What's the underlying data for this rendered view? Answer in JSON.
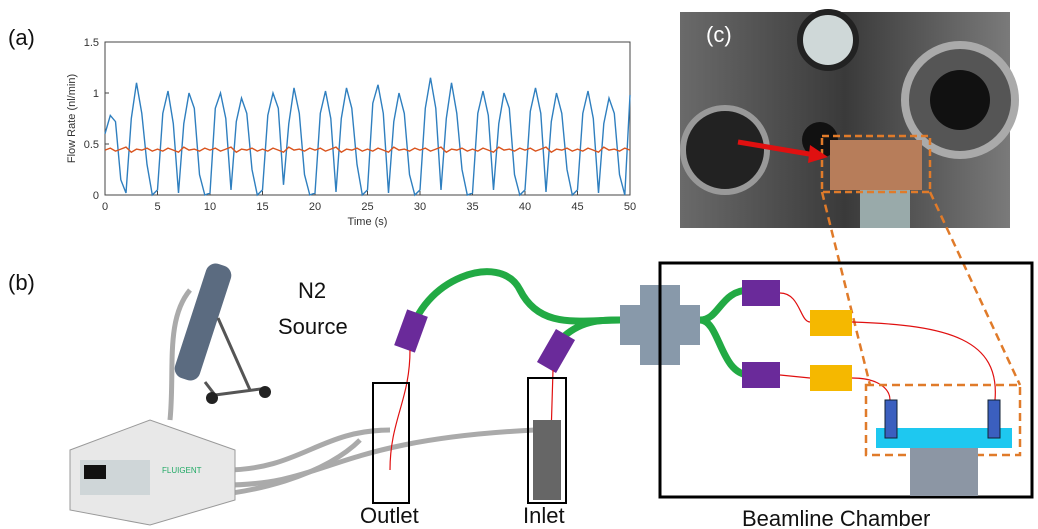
{
  "panels": [
    "(a)",
    "(b)",
    "(c)"
  ],
  "chart_data": {
    "type": "line",
    "ylabel": "Flow Rate (nl/min)",
    "xlabel": "Time (s)",
    "x": [
      0,
      0.5,
      1,
      1.5,
      2,
      2.5,
      3,
      3.5,
      4,
      4.5,
      5,
      5.5,
      6,
      6.5,
      7,
      7.5,
      8,
      8.5,
      9,
      9.5,
      10,
      10.5,
      11,
      11.5,
      12,
      12.5,
      13,
      13.5,
      14,
      14.5,
      15,
      15.5,
      16,
      16.5,
      17,
      17.5,
      18,
      18.5,
      19,
      19.5,
      20,
      20.5,
      21,
      21.5,
      22,
      22.5,
      23,
      23.5,
      24,
      24.5,
      25,
      25.5,
      26,
      26.5,
      27,
      27.5,
      28,
      28.5,
      29,
      29.5,
      30,
      30.5,
      31,
      31.5,
      32,
      32.5,
      33,
      33.5,
      34,
      34.5,
      35,
      35.5,
      36,
      36.5,
      37,
      37.5,
      38,
      38.5,
      39,
      39.5,
      40,
      40.5,
      41,
      41.5,
      42,
      42.5,
      43,
      43.5,
      44,
      44.5,
      45,
      45.5,
      46,
      46.5,
      47,
      47.5,
      48,
      48.5,
      49,
      49.5,
      50
    ],
    "series": [
      {
        "color": "#2f7fbf",
        "values": [
          0.6,
          0.78,
          0.72,
          0.15,
          0.02,
          0.75,
          1.1,
          0.8,
          0.3,
          0.0,
          0.05,
          0.8,
          1.02,
          0.7,
          0.02,
          0.7,
          1.0,
          0.85,
          0.2,
          0.0,
          0.02,
          0.85,
          1.0,
          0.75,
          0.05,
          0.72,
          0.95,
          0.8,
          0.25,
          0.0,
          0.05,
          0.78,
          1.0,
          0.85,
          0.1,
          0.7,
          1.05,
          0.8,
          0.2,
          0.0,
          0.02,
          0.8,
          1.02,
          0.75,
          0.03,
          0.75,
          1.05,
          0.85,
          0.3,
          0.0,
          0.05,
          0.9,
          1.08,
          0.8,
          0.02,
          0.72,
          1.0,
          0.8,
          0.2,
          0.0,
          0.05,
          0.85,
          1.15,
          0.85,
          0.05,
          0.75,
          1.1,
          0.8,
          0.25,
          0.0,
          0.02,
          0.8,
          1.02,
          0.78,
          0.05,
          0.7,
          1.0,
          0.85,
          0.2,
          0.0,
          0.05,
          0.82,
          1.05,
          0.8,
          0.03,
          0.72,
          1.0,
          0.8,
          0.25,
          0.0,
          0.05,
          0.8,
          1.02,
          0.75,
          0.02,
          0.7,
          0.95,
          0.8,
          0.2,
          0.0,
          0.98
        ]
      },
      {
        "color": "#d9541e",
        "values": [
          0.44,
          0.46,
          0.43,
          0.45,
          0.47,
          0.42,
          0.45,
          0.44,
          0.46,
          0.43,
          0.45,
          0.43,
          0.46,
          0.44,
          0.42,
          0.47,
          0.44,
          0.45,
          0.43,
          0.46,
          0.44,
          0.46,
          0.43,
          0.45,
          0.47,
          0.42,
          0.45,
          0.44,
          0.46,
          0.43,
          0.45,
          0.43,
          0.46,
          0.44,
          0.42,
          0.47,
          0.44,
          0.45,
          0.43,
          0.46,
          0.44,
          0.46,
          0.43,
          0.45,
          0.47,
          0.42,
          0.45,
          0.44,
          0.46,
          0.43,
          0.45,
          0.43,
          0.46,
          0.44,
          0.42,
          0.47,
          0.44,
          0.45,
          0.43,
          0.46,
          0.44,
          0.46,
          0.43,
          0.45,
          0.47,
          0.42,
          0.45,
          0.44,
          0.46,
          0.43,
          0.45,
          0.43,
          0.46,
          0.44,
          0.42,
          0.47,
          0.44,
          0.45,
          0.43,
          0.46,
          0.44,
          0.46,
          0.43,
          0.45,
          0.47,
          0.42,
          0.45,
          0.44,
          0.46,
          0.43,
          0.45,
          0.43,
          0.46,
          0.44,
          0.42,
          0.47,
          0.44,
          0.45,
          0.43,
          0.46,
          0.44
        ]
      }
    ],
    "xlim": [
      0,
      50
    ],
    "xticks": [
      0,
      5,
      10,
      15,
      20,
      25,
      30,
      35,
      40,
      45,
      50
    ],
    "ylim": [
      0,
      1.5
    ],
    "yticks": [
      0,
      0.5,
      1,
      1.5
    ]
  },
  "diagram": {
    "source": [
      "N2",
      "Source"
    ],
    "device": "FLUIGENT",
    "outlet": "Outlet",
    "inlet": "Inlet",
    "chamber": "Beamline Chamber"
  }
}
